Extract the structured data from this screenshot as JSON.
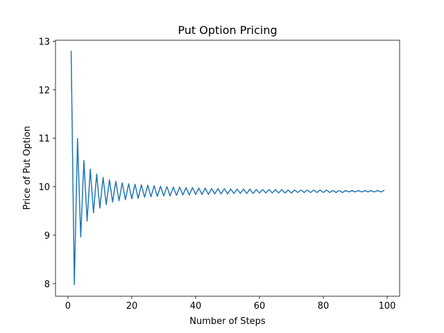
{
  "chart_data": {
    "type": "line",
    "title": "Put Option Pricing",
    "xlabel": "Number of Steps",
    "ylabel": "Price of Put Option",
    "xlim": [
      -3.9,
      103.9
    ],
    "ylim": [
      7.74,
      13.02
    ],
    "xticks": [
      0,
      20,
      40,
      60,
      80,
      100
    ],
    "yticks": [
      8,
      9,
      10,
      11,
      12,
      13
    ],
    "grid": false,
    "series": [
      {
        "color": "#1f77b4",
        "x": [
          1,
          2,
          3,
          4,
          5,
          6,
          7,
          8,
          9,
          10,
          11,
          12,
          13,
          14,
          15,
          16,
          17,
          18,
          19,
          20,
          21,
          22,
          23,
          24,
          25,
          26,
          27,
          28,
          29,
          30,
          31,
          32,
          33,
          34,
          35,
          36,
          37,
          38,
          39,
          40,
          41,
          42,
          43,
          44,
          45,
          46,
          47,
          48,
          49,
          50,
          51,
          52,
          53,
          54,
          55,
          56,
          57,
          58,
          59,
          60,
          61,
          62,
          63,
          64,
          65,
          66,
          67,
          68,
          69,
          70,
          71,
          72,
          73,
          74,
          75,
          76,
          77,
          78,
          79,
          80,
          81,
          82,
          83,
          84,
          85,
          86,
          87,
          88,
          89,
          90,
          91,
          92,
          93,
          94,
          95,
          96,
          97,
          98,
          99
        ],
        "y": [
          12.79,
          7.98,
          10.99,
          8.96,
          10.54,
          9.29,
          10.36,
          9.46,
          10.26,
          9.56,
          10.19,
          9.63,
          10.14,
          9.68,
          10.11,
          9.71,
          10.08,
          9.73,
          10.06,
          9.75,
          10.05,
          9.76,
          10.04,
          9.78,
          10.03,
          9.79,
          10.02,
          9.8,
          10.01,
          9.81,
          10.0,
          9.81,
          9.99,
          9.82,
          9.99,
          9.83,
          9.98,
          9.83,
          9.98,
          9.84,
          9.97,
          9.84,
          9.97,
          9.84,
          9.96,
          9.85,
          9.96,
          9.85,
          9.96,
          9.85,
          9.95,
          9.86,
          9.95,
          9.86,
          9.95,
          9.86,
          9.95,
          9.86,
          9.94,
          9.87,
          9.94,
          9.87,
          9.94,
          9.87,
          9.94,
          9.87,
          9.94,
          9.87,
          9.93,
          9.87,
          9.93,
          9.88,
          9.93,
          9.88,
          9.93,
          9.88,
          9.93,
          9.88,
          9.93,
          9.88,
          9.93,
          9.88,
          9.92,
          9.88,
          9.92,
          9.88,
          9.92,
          9.89,
          9.92,
          9.89,
          9.92,
          9.89,
          9.92,
          9.89,
          9.92,
          9.89,
          9.92,
          9.89,
          9.92
        ]
      }
    ]
  }
}
